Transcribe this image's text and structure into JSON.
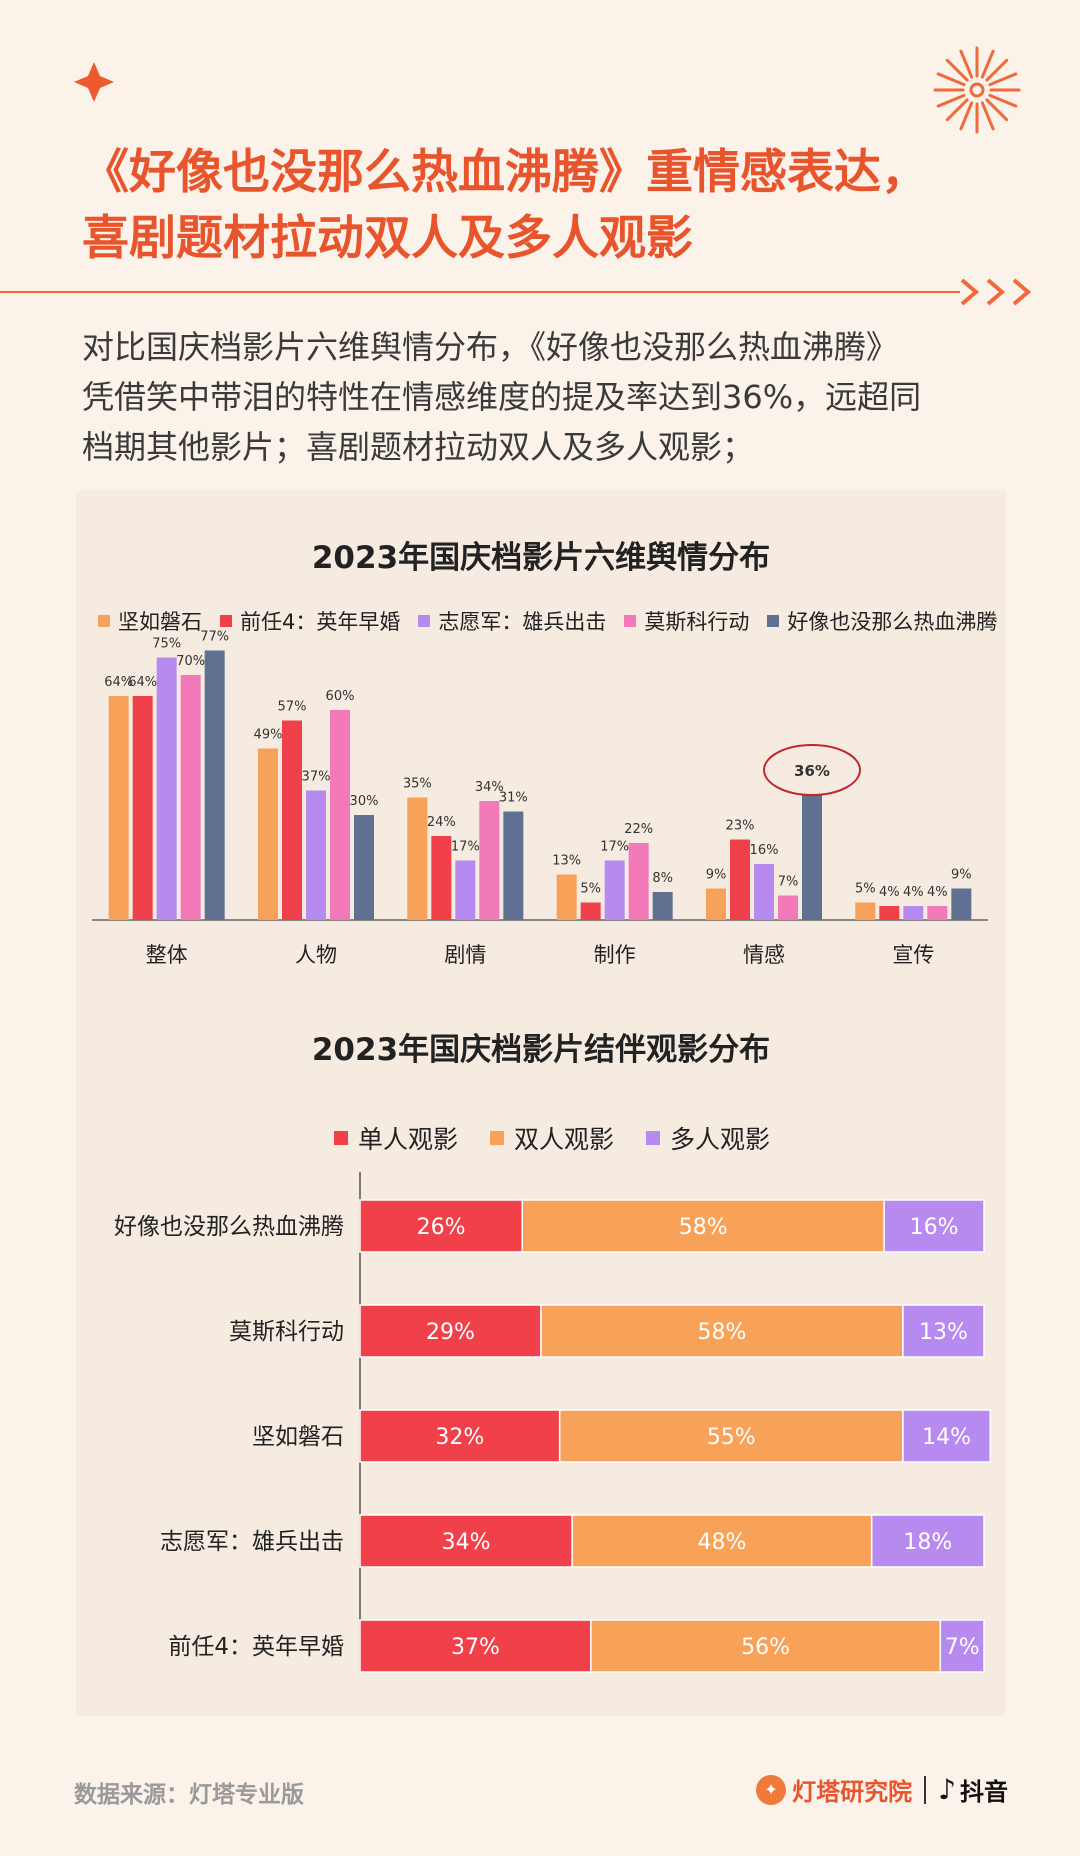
{
  "header": {
    "title_line1": "《好像也没那么热血沸腾》重情感表达，",
    "title_line2": "喜剧题材拉动双人及多人观影",
    "subtitle_line1": "对比国庆档影片六维舆情分布，《好像也没那么热血沸腾》",
    "subtitle_line2": "凭借笑中带泪的特性在情感维度的提及率达到36%，远超同",
    "subtitle_line3": "档期其他影片；喜剧题材拉动双人及多人观影；"
  },
  "colors": {
    "accent": "#e8542c",
    "series": [
      "#f7a258",
      "#f0404a",
      "#b78af0",
      "#f27ab8",
      "#5f7090"
    ],
    "companion": [
      "#f0404a",
      "#f7a258",
      "#b78af0"
    ]
  },
  "chart_data": [
    {
      "type": "bar",
      "title": "2023年国庆档影片六维舆情分布",
      "categories": [
        "整体",
        "人物",
        "剧情",
        "制作",
        "情感",
        "宣传"
      ],
      "series": [
        {
          "name": "坚如磐石",
          "values": [
            64,
            49,
            35,
            13,
            9,
            5
          ]
        },
        {
          "name": "前任4：英年早婚",
          "values": [
            64,
            57,
            24,
            5,
            23,
            4
          ]
        },
        {
          "name": "志愿军：雄兵出击",
          "values": [
            75,
            37,
            17,
            17,
            16,
            4
          ]
        },
        {
          "name": "莫斯科行动",
          "values": [
            70,
            60,
            34,
            22,
            7,
            4
          ]
        },
        {
          "name": "好像也没那么热血沸腾",
          "values": [
            77,
            30,
            31,
            8,
            36,
            9
          ]
        }
      ],
      "value_suffix": "%",
      "highlight": {
        "category": "情感",
        "series": "好像也没那么热血沸腾",
        "label": "36%"
      },
      "ylim": [
        0,
        80
      ],
      "legend_position": "top"
    },
    {
      "type": "bar",
      "orientation": "horizontal",
      "stacked": true,
      "title": "2023年国庆档影片结伴观影分布",
      "categories": [
        "好像也没那么热血沸腾",
        "莫斯科行动",
        "坚如磐石",
        "志愿军：雄兵出击",
        "前任4：英年早婚"
      ],
      "series": [
        {
          "name": "单人观影",
          "values": [
            26,
            29,
            32,
            34,
            37
          ]
        },
        {
          "name": "双人观影",
          "values": [
            58,
            58,
            55,
            48,
            56
          ]
        },
        {
          "name": "多人观影",
          "values": [
            16,
            13,
            14,
            18,
            7
          ]
        }
      ],
      "value_suffix": "%",
      "xlim": [
        0,
        100
      ],
      "legend_position": "top"
    }
  ],
  "footer": {
    "source": "数据来源：灯塔专业版",
    "brand": "灯塔研究院",
    "platform": "抖音"
  }
}
